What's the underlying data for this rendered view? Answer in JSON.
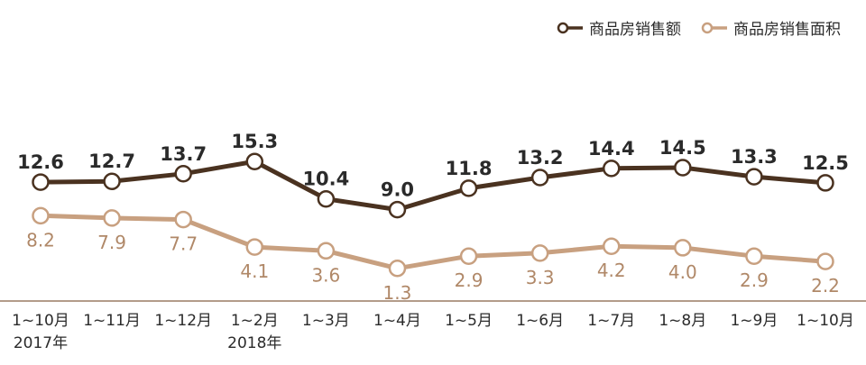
{
  "legend": {
    "sales_amount": "商品房销售额",
    "sales_area": "商品房销售面积"
  },
  "colors": {
    "sales_amount": "#4a3220",
    "sales_area": "#c8a080",
    "baseline": "#9a7c63",
    "amount_label": "#2a2a2a",
    "area_label": "#b08868"
  },
  "chart_data": {
    "type": "line",
    "categories": [
      "1~10月",
      "1~11月",
      "1~12月",
      "1~2月",
      "1~3月",
      "1~4月",
      "1~5月",
      "1~6月",
      "1~7月",
      "1~8月",
      "1~9月",
      "1~10月"
    ],
    "year_labels": [
      "2017年",
      "",
      "",
      "2018年",
      "",
      "",
      "",
      "",
      "",
      "",
      "",
      ""
    ],
    "series": [
      {
        "name": "商品房销售额",
        "values": [
          12.6,
          12.7,
          13.7,
          15.3,
          10.4,
          9.0,
          11.8,
          13.2,
          14.4,
          14.5,
          13.3,
          12.5
        ]
      },
      {
        "name": "商品房销售面积",
        "values": [
          8.2,
          7.9,
          7.7,
          4.1,
          3.6,
          1.3,
          2.9,
          3.3,
          4.2,
          4.0,
          2.9,
          2.2
        ]
      }
    ],
    "ylim": [
      0,
      17
    ],
    "grid": false,
    "legend_position": "top-right"
  }
}
